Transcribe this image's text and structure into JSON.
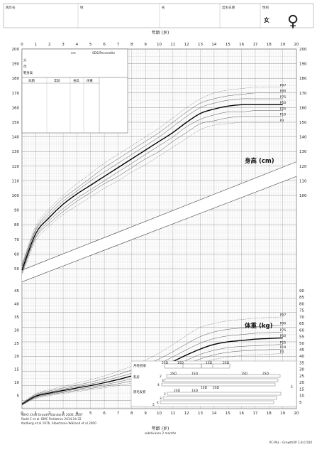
{
  "header": {
    "fields": [
      "病历号",
      "姓",
      "名",
      "出生日期",
      "性别"
    ],
    "gender_value": "女",
    "gender_symbol": "♀"
  },
  "x_axis": {
    "label_top": "年龄 (岁)",
    "label_bottom": "年龄 (岁)",
    "label_bottom_sub": "subdivision 2 months",
    "ticks": [
      0,
      1,
      2,
      3,
      4,
      5,
      6,
      7,
      8,
      9,
      10,
      11,
      12,
      13,
      14,
      15,
      16,
      17,
      18,
      19,
      20
    ]
  },
  "height_axis": {
    "ticks_left": [
      200,
      190,
      180,
      170,
      160,
      150,
      140,
      130,
      120,
      110,
      100,
      90,
      80,
      70,
      60,
      50
    ],
    "ticks_right": [
      200,
      190,
      180,
      170,
      160,
      150,
      140,
      130,
      120,
      110,
      100
    ]
  },
  "weight_axis": {
    "ticks_left": [
      45,
      40,
      35,
      30,
      25,
      20,
      15,
      10,
      5
    ],
    "ticks_right": [
      90,
      85,
      80,
      75,
      70,
      65,
      60,
      55,
      50,
      45,
      40,
      35,
      30,
      25,
      20,
      15,
      10,
      5
    ]
  },
  "info_box": {
    "cm_label": "cm",
    "sds_label": "SDS/Percentile",
    "rows": [
      "父",
      "母",
      "靶身高"
    ],
    "table_headers": [
      "日期",
      "年龄",
      "身高",
      "体重"
    ]
  },
  "labels": {
    "height": "身高 (cm)",
    "weight": "体重 (kg)",
    "height_percentiles": [
      "P97",
      "P90",
      "P75",
      "P50",
      "P25",
      "P10",
      "P3"
    ],
    "weight_percentiles": [
      "P97",
      "P90",
      "P75",
      "P50",
      "P25",
      "P10",
      "P3"
    ]
  },
  "puberty": {
    "rows": [
      "月经初潮",
      "乳房",
      "阴毛发育"
    ],
    "sd_labels": [
      "2SD",
      "1SD",
      "1SD",
      "2SD"
    ],
    "stage_numbers": [
      "2",
      "3",
      "4",
      "5",
      "2",
      "3",
      "4",
      "5"
    ]
  },
  "footer": {
    "sources": [
      "WHO Child Growth Standards 2006, 2007",
      "Rodd C et al. BMC Pediatrics 2014;14:32",
      "Karlberg et al 1976, Albertsson-Wikland et al 2000"
    ],
    "version": "PC-PAL - GrowthXP 2.8.0.500"
  },
  "chart_data": {
    "type": "line",
    "title": "",
    "xlabel": "年龄 (岁)",
    "height_ylim": [
      45,
      200
    ],
    "weight_ylim": [
      0,
      50
    ],
    "height_series": [
      {
        "name": "P97",
        "x": [
          0,
          1,
          2,
          3,
          4,
          5,
          6,
          7,
          8,
          9,
          10,
          11,
          12,
          13,
          14,
          15,
          16,
          17,
          18,
          19
        ],
        "y": [
          53,
          79,
          91,
          100,
          108,
          115,
          122,
          128,
          134,
          140,
          146,
          153,
          160,
          166,
          170,
          172,
          173,
          174,
          174,
          174
        ]
      },
      {
        "name": "P90",
        "x": [
          0,
          1,
          2,
          3,
          4,
          5,
          6,
          7,
          8,
          9,
          10,
          11,
          12,
          13,
          14,
          15,
          16,
          17,
          18,
          19
        ],
        "y": [
          52,
          77,
          89,
          98,
          105,
          112,
          119,
          125,
          131,
          137,
          143,
          150,
          157,
          163,
          166,
          168,
          169,
          170,
          170,
          170
        ]
      },
      {
        "name": "P75",
        "x": [
          0,
          1,
          2,
          3,
          4,
          5,
          6,
          7,
          8,
          9,
          10,
          11,
          12,
          13,
          14,
          15,
          16,
          17,
          18,
          19
        ],
        "y": [
          51,
          76,
          87,
          96,
          103,
          110,
          116,
          122,
          128,
          134,
          140,
          147,
          154,
          160,
          163,
          165,
          166,
          166,
          166,
          166
        ]
      },
      {
        "name": "P50",
        "x": [
          0,
          1,
          2,
          3,
          4,
          5,
          6,
          7,
          8,
          9,
          10,
          11,
          12,
          13,
          14,
          15,
          16,
          17,
          18,
          19
        ],
        "y": [
          49,
          74,
          85,
          94,
          101,
          107,
          113,
          119,
          125,
          131,
          137,
          143,
          150,
          156,
          159,
          161,
          162,
          162,
          162,
          162
        ]
      },
      {
        "name": "P25",
        "x": [
          0,
          1,
          2,
          3,
          4,
          5,
          6,
          7,
          8,
          9,
          10,
          11,
          12,
          13,
          14,
          15,
          16,
          17,
          18,
          19
        ],
        "y": [
          48,
          72,
          83,
          91,
          98,
          104,
          110,
          116,
          122,
          128,
          134,
          140,
          147,
          152,
          155,
          157,
          157,
          158,
          158,
          158
        ]
      },
      {
        "name": "P10",
        "x": [
          0,
          1,
          2,
          3,
          4,
          5,
          6,
          7,
          8,
          9,
          10,
          11,
          12,
          13,
          14,
          15,
          16,
          17,
          18,
          19
        ],
        "y": [
          47,
          71,
          81,
          89,
          96,
          102,
          108,
          113,
          119,
          125,
          130,
          137,
          143,
          149,
          151,
          153,
          154,
          154,
          154,
          154
        ]
      },
      {
        "name": "P3",
        "x": [
          0,
          1,
          2,
          3,
          4,
          5,
          6,
          7,
          8,
          9,
          10,
          11,
          12,
          13,
          14,
          15,
          16,
          17,
          18,
          19
        ],
        "y": [
          46,
          69,
          79,
          87,
          93,
          99,
          105,
          110,
          116,
          121,
          127,
          133,
          139,
          145,
          148,
          149,
          150,
          150,
          150,
          150
        ]
      }
    ],
    "weight_series": [
      {
        "name": "P97",
        "x": [
          0,
          1,
          2,
          3,
          4,
          5,
          6,
          7,
          8,
          9,
          10,
          11,
          12,
          13,
          14,
          15,
          16,
          17,
          18,
          19
        ],
        "y": [
          4.2,
          11.5,
          14.5,
          17,
          19.5,
          22,
          25,
          28.5,
          32.5,
          37,
          42.5,
          49,
          56,
          62,
          65,
          67,
          68,
          69,
          69.5,
          70
        ]
      },
      {
        "name": "P90",
        "x": [
          0,
          1,
          2,
          3,
          4,
          5,
          6,
          7,
          8,
          9,
          10,
          11,
          12,
          13,
          14,
          15,
          16,
          17,
          18,
          19
        ],
        "y": [
          3.9,
          10.8,
          13.5,
          15.8,
          18,
          20.2,
          23,
          26,
          29.5,
          33.5,
          38,
          43.5,
          49.5,
          55,
          58.5,
          60.5,
          61.5,
          62.5,
          63,
          63.5
        ]
      },
      {
        "name": "P75",
        "x": [
          0,
          1,
          2,
          3,
          4,
          5,
          6,
          7,
          8,
          9,
          10,
          11,
          12,
          13,
          14,
          15,
          16,
          17,
          18,
          19
        ],
        "y": [
          3.6,
          10.2,
          12.7,
          14.8,
          16.8,
          18.8,
          21.2,
          24,
          27,
          30.5,
          34.5,
          39.5,
          45,
          50,
          53.5,
          55.5,
          56.5,
          57.5,
          58,
          58.5
        ]
      },
      {
        "name": "P50",
        "x": [
          0,
          1,
          2,
          3,
          4,
          5,
          6,
          7,
          8,
          9,
          10,
          11,
          12,
          13,
          14,
          15,
          16,
          17,
          18,
          19
        ],
        "y": [
          3.3,
          9.5,
          11.9,
          13.9,
          15.8,
          17.6,
          19.8,
          22.2,
          25,
          28,
          31.5,
          36,
          41,
          45.5,
          49,
          51,
          52,
          53,
          53.5,
          54
        ]
      },
      {
        "name": "P25",
        "x": [
          0,
          1,
          2,
          3,
          4,
          5,
          6,
          7,
          8,
          9,
          10,
          11,
          12,
          13,
          14,
          15,
          16,
          17,
          18,
          19
        ],
        "y": [
          3.1,
          8.9,
          11.2,
          13,
          14.8,
          16.4,
          18.3,
          20.4,
          22.8,
          25.5,
          28.6,
          32.5,
          37,
          41.5,
          44.5,
          46.5,
          47.5,
          48,
          48.5,
          49
        ]
      },
      {
        "name": "P10",
        "x": [
          0,
          1,
          2,
          3,
          4,
          5,
          6,
          7,
          8,
          9,
          10,
          11,
          12,
          13,
          14,
          15,
          16,
          17,
          18,
          19
        ],
        "y": [
          2.9,
          8.4,
          10.6,
          12.3,
          13.9,
          15.4,
          17.1,
          19,
          21.2,
          23.6,
          26.4,
          29.8,
          34,
          38,
          41,
          43,
          44,
          44.5,
          45,
          45.5
        ]
      },
      {
        "name": "P3",
        "x": [
          0,
          1,
          2,
          3,
          4,
          5,
          6,
          7,
          8,
          9,
          10,
          11,
          12,
          13,
          14,
          15,
          16,
          17,
          18,
          19
        ],
        "y": [
          2.7,
          7.8,
          9.9,
          11.5,
          13,
          14.4,
          15.9,
          17.6,
          19.5,
          21.7,
          24.2,
          27.2,
          31,
          34.8,
          37.5,
          39.5,
          40.5,
          41,
          41.5,
          42
        ]
      }
    ]
  }
}
